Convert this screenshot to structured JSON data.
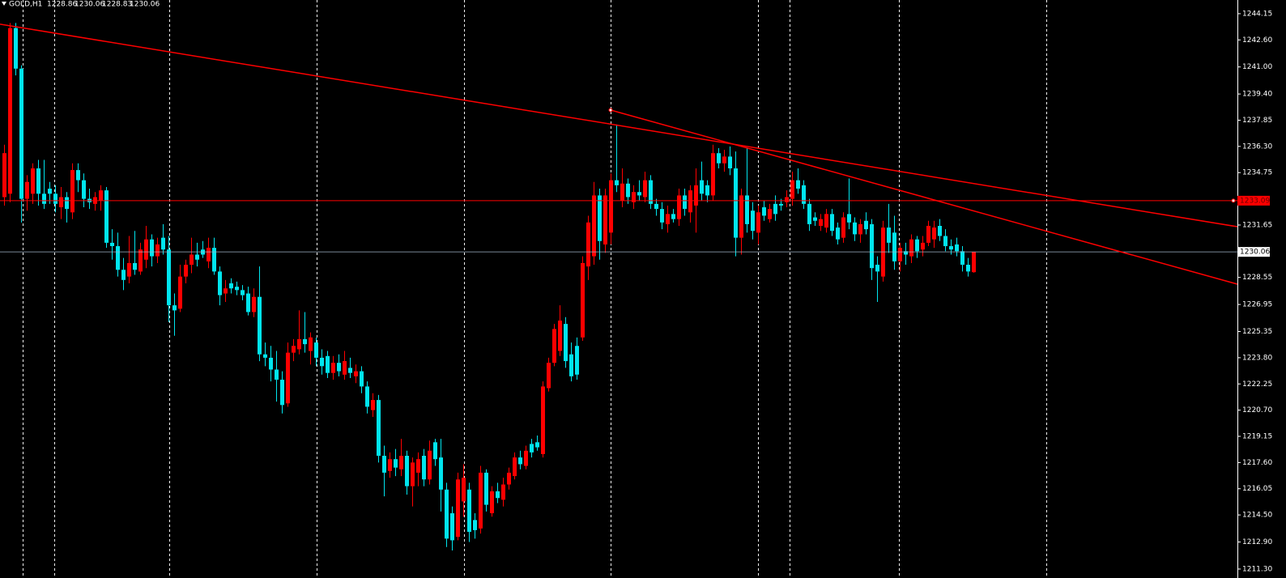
{
  "chart_data": {
    "type": "candlestick",
    "title": "GOLD,H1",
    "up_color": "#ff0000",
    "down_color": "#00e5ee",
    "ylim": [
      1210.77,
      1244.96
    ],
    "yticks": [
      {
        "value": 1244.15,
        "label": "1244.15"
      },
      {
        "value": 1242.6,
        "label": "1242.60"
      },
      {
        "value": 1241,
        "label": "1241.00"
      },
      {
        "value": 1239.4,
        "label": "1239.40"
      },
      {
        "value": 1237.85,
        "label": "1237.85"
      },
      {
        "value": 1236.3,
        "label": "1236.30"
      },
      {
        "value": 1234.75,
        "label": "1234.75"
      },
      {
        "value": 1231.65,
        "label": "1231.65"
      },
      {
        "value": 1228.55,
        "label": "1228.55"
      },
      {
        "value": 1226.95,
        "label": "1226.95"
      },
      {
        "value": 1225.35,
        "label": "1225.35"
      },
      {
        "value": 1223.8,
        "label": "1223.80"
      },
      {
        "value": 1222.25,
        "label": "1222.25"
      },
      {
        "value": 1220.7,
        "label": "1220.70"
      },
      {
        "value": 1219.15,
        "label": "1219.15"
      },
      {
        "value": 1217.6,
        "label": "1217.60"
      },
      {
        "value": 1216.05,
        "label": "1216.05"
      },
      {
        "value": 1214.5,
        "label": "1214.50"
      },
      {
        "value": 1212.9,
        "label": "1212.90"
      },
      {
        "value": 1211.3,
        "label": "1211.30"
      }
    ],
    "hline": {
      "value": 1233.09,
      "color": "#ff0000"
    },
    "price_line_color": "#9fb3c8",
    "trendlines": [
      {
        "color": "#ff0000",
        "values": [
          1243.53,
          1231.55
        ]
      },
      {
        "color": "#ff0000",
        "start": 107,
        "values": [
          1238.45,
          1228.15
        ]
      }
    ],
    "candles": [
      [
        1233.3,
        1236.4,
        1232.8,
        1235.9
      ],
      [
        1233.5,
        1243.6,
        1233.0,
        1243.3
      ],
      [
        1243.3,
        1243.6,
        1240.5,
        1240.9
      ],
      [
        1240.9,
        1241.1,
        1231.8,
        1233.2
      ],
      [
        1233.2,
        1234.6,
        1232.5,
        1234.2
      ],
      [
        1233.5,
        1235.3,
        1232.9,
        1235.0
      ],
      [
        1235.0,
        1235.5,
        1232.8,
        1233.5
      ],
      [
        1233.5,
        1235.5,
        1232.6,
        1232.9
      ],
      [
        1233.8,
        1234.2,
        1232.9,
        1233.5
      ],
      [
        1233.5,
        1234.0,
        1232.4,
        1232.9
      ],
      [
        1232.7,
        1233.9,
        1232.0,
        1233.3
      ],
      [
        1233.3,
        1233.6,
        1231.8,
        1232.6
      ],
      [
        1232.4,
        1235.3,
        1232.0,
        1234.9
      ],
      [
        1234.9,
        1235.3,
        1233.6,
        1234.3
      ],
      [
        1234.3,
        1234.7,
        1232.7,
        1233.2
      ],
      [
        1233.2,
        1233.8,
        1232.6,
        1233.0
      ],
      [
        1232.9,
        1233.6,
        1232.5,
        1233.3
      ],
      [
        1233.1,
        1234.0,
        1232.5,
        1233.7
      ],
      [
        1233.7,
        1233.9,
        1230.3,
        1230.6
      ],
      [
        1230.6,
        1231.4,
        1229.6,
        1230.4
      ],
      [
        1230.4,
        1231.2,
        1228.6,
        1229.0
      ],
      [
        1229.0,
        1229.7,
        1227.8,
        1228.4
      ],
      [
        1228.6,
        1231.0,
        1228.2,
        1229.4
      ],
      [
        1229.4,
        1231.3,
        1228.7,
        1229.0
      ],
      [
        1228.9,
        1230.6,
        1228.7,
        1230.2
      ],
      [
        1229.6,
        1231.6,
        1229.1,
        1230.8
      ],
      [
        1230.8,
        1231.1,
        1229.2,
        1229.8
      ],
      [
        1229.8,
        1230.9,
        1229.4,
        1230.5
      ],
      [
        1230.9,
        1231.7,
        1229.9,
        1230.2
      ],
      [
        1230.2,
        1231.0,
        1225.9,
        1226.9
      ],
      [
        1226.9,
        1227.6,
        1225.1,
        1226.6
      ],
      [
        1226.7,
        1229.3,
        1226.5,
        1228.6
      ],
      [
        1228.6,
        1229.6,
        1228.2,
        1229.3
      ],
      [
        1229.3,
        1230.9,
        1228.8,
        1229.9
      ],
      [
        1229.9,
        1230.6,
        1229.2,
        1229.6
      ],
      [
        1230.2,
        1230.7,
        1229.7,
        1229.9
      ],
      [
        1229.5,
        1230.9,
        1229.1,
        1230.3
      ],
      [
        1230.3,
        1230.9,
        1228.7,
        1228.9
      ],
      [
        1228.9,
        1229.2,
        1226.9,
        1227.5
      ],
      [
        1227.6,
        1228.4,
        1227.1,
        1227.9
      ],
      [
        1228.2,
        1228.5,
        1227.6,
        1227.9
      ],
      [
        1228.0,
        1228.3,
        1227.5,
        1227.8
      ],
      [
        1227.8,
        1228.1,
        1227.2,
        1227.5
      ],
      [
        1227.6,
        1228.0,
        1226.3,
        1226.5
      ],
      [
        1226.5,
        1227.9,
        1226.2,
        1227.4
      ],
      [
        1227.4,
        1229.2,
        1223.6,
        1224.0
      ],
      [
        1224.0,
        1224.7,
        1223.3,
        1223.8
      ],
      [
        1223.8,
        1224.5,
        1222.4,
        1223.1
      ],
      [
        1223.1,
        1224.2,
        1221.2,
        1222.5
      ],
      [
        1222.5,
        1223.0,
        1220.5,
        1221.0
      ],
      [
        1221.1,
        1224.7,
        1220.9,
        1224.1
      ],
      [
        1224.1,
        1224.9,
        1223.6,
        1224.5
      ],
      [
        1224.3,
        1226.6,
        1224.0,
        1224.9
      ],
      [
        1224.9,
        1226.5,
        1224.1,
        1224.6
      ],
      [
        1224.2,
        1225.3,
        1223.4,
        1225.0
      ],
      [
        1224.7,
        1225.0,
        1223.3,
        1223.8
      ],
      [
        1223.8,
        1224.3,
        1222.8,
        1223.3
      ],
      [
        1223.9,
        1224.2,
        1222.6,
        1222.9
      ],
      [
        1222.9,
        1223.9,
        1222.5,
        1223.5
      ],
      [
        1223.5,
        1224.0,
        1222.7,
        1223.0
      ],
      [
        1222.8,
        1224.2,
        1222.5,
        1223.6
      ],
      [
        1223.2,
        1223.8,
        1222.6,
        1222.9
      ],
      [
        1222.7,
        1223.4,
        1222.3,
        1223.0
      ],
      [
        1223.0,
        1223.3,
        1221.7,
        1222.1
      ],
      [
        1222.1,
        1222.4,
        1220.5,
        1220.9
      ],
      [
        1220.7,
        1221.7,
        1220.3,
        1221.3
      ],
      [
        1221.3,
        1221.6,
        1217.6,
        1218.0
      ],
      [
        1218.0,
        1218.6,
        1215.6,
        1217.0
      ],
      [
        1217.1,
        1218.2,
        1216.7,
        1217.8
      ],
      [
        1217.8,
        1218.4,
        1216.8,
        1217.3
      ],
      [
        1217.2,
        1219.0,
        1216.8,
        1218.0
      ],
      [
        1218.0,
        1218.3,
        1215.7,
        1216.2
      ],
      [
        1216.2,
        1217.9,
        1215.0,
        1217.6
      ],
      [
        1217.0,
        1218.2,
        1216.2,
        1217.8
      ],
      [
        1218.0,
        1218.4,
        1216.2,
        1216.6
      ],
      [
        1216.6,
        1218.9,
        1216.3,
        1218.3
      ],
      [
        1218.8,
        1219.0,
        1217.4,
        1217.8
      ],
      [
        1217.9,
        1219.0,
        1214.7,
        1216.0
      ],
      [
        1216.0,
        1216.4,
        1212.6,
        1213.1
      ],
      [
        1214.6,
        1215.0,
        1212.4,
        1213.0
      ],
      [
        1213.2,
        1217.0,
        1213.0,
        1216.6
      ],
      [
        1215.3,
        1217.5,
        1214.4,
        1216.7
      ],
      [
        1216.0,
        1216.4,
        1212.9,
        1213.5
      ],
      [
        1214.2,
        1214.6,
        1213.1,
        1213.6
      ],
      [
        1213.7,
        1217.4,
        1213.4,
        1217.0
      ],
      [
        1217.0,
        1217.2,
        1214.7,
        1215.1
      ],
      [
        1214.6,
        1216.2,
        1214.4,
        1215.9
      ],
      [
        1215.9,
        1216.4,
        1215.2,
        1215.5
      ],
      [
        1215.4,
        1216.7,
        1215.0,
        1216.3
      ],
      [
        1216.3,
        1217.3,
        1216.0,
        1217.0
      ],
      [
        1216.8,
        1218.2,
        1216.6,
        1217.9
      ],
      [
        1217.9,
        1218.3,
        1217.2,
        1217.5
      ],
      [
        1217.4,
        1218.6,
        1217.2,
        1218.3
      ],
      [
        1218.7,
        1219.0,
        1217.9,
        1218.2
      ],
      [
        1218.8,
        1219.2,
        1218.3,
        1218.5
      ],
      [
        1218.1,
        1222.4,
        1217.9,
        1222.1
      ],
      [
        1222.0,
        1223.8,
        1221.8,
        1223.5
      ],
      [
        1223.5,
        1225.8,
        1223.3,
        1225.5
      ],
      [
        1224.2,
        1226.9,
        1223.9,
        1226.0
      ],
      [
        1225.8,
        1226.2,
        1223.2,
        1223.6
      ],
      [
        1224.0,
        1224.7,
        1222.4,
        1222.7
      ],
      [
        1224.5,
        1225.0,
        1222.5,
        1222.8
      ],
      [
        1225.0,
        1229.8,
        1224.8,
        1229.4
      ],
      [
        1229.2,
        1232.2,
        1228.4,
        1231.8
      ],
      [
        1229.8,
        1234.2,
        1229.3,
        1233.4
      ],
      [
        1233.4,
        1233.8,
        1229.6,
        1230.7
      ],
      [
        1230.5,
        1233.8,
        1230.0,
        1233.4
      ],
      [
        1231.2,
        1234.7,
        1230.5,
        1234.3
      ],
      [
        1234.3,
        1237.6,
        1233.6,
        1234.0
      ],
      [
        1233.1,
        1235.0,
        1232.7,
        1234.1
      ],
      [
        1234.1,
        1234.4,
        1232.9,
        1233.3
      ],
      [
        1233.0,
        1234.0,
        1232.6,
        1233.6
      ],
      [
        1233.6,
        1234.3,
        1233.1,
        1233.4
      ],
      [
        1233.3,
        1234.8,
        1233.0,
        1234.3
      ],
      [
        1234.3,
        1234.6,
        1232.6,
        1232.9
      ],
      [
        1232.9,
        1233.2,
        1232.2,
        1232.6
      ],
      [
        1232.6,
        1233.0,
        1231.4,
        1231.8
      ],
      [
        1231.7,
        1232.8,
        1231.2,
        1232.3
      ],
      [
        1232.3,
        1232.6,
        1231.8,
        1232.0
      ],
      [
        1232.0,
        1233.8,
        1231.6,
        1233.4
      ],
      [
        1233.4,
        1233.8,
        1232.2,
        1232.6
      ],
      [
        1232.4,
        1234.0,
        1231.8,
        1233.7
      ],
      [
        1232.8,
        1235.0,
        1231.2,
        1234.0
      ],
      [
        1234.3,
        1235.4,
        1233.1,
        1233.5
      ],
      [
        1234.0,
        1234.3,
        1233.0,
        1233.4
      ],
      [
        1233.4,
        1236.4,
        1233.1,
        1235.9
      ],
      [
        1235.9,
        1236.2,
        1235.0,
        1235.3
      ],
      [
        1235.3,
        1236.1,
        1234.8,
        1235.7
      ],
      [
        1235.7,
        1236.3,
        1234.6,
        1235.0
      ],
      [
        1235.0,
        1236.0,
        1229.8,
        1230.9
      ],
      [
        1230.9,
        1233.8,
        1229.9,
        1233.4
      ],
      [
        1233.4,
        1236.2,
        1231.2,
        1231.7
      ],
      [
        1232.5,
        1233.0,
        1230.8,
        1231.3
      ],
      [
        1231.2,
        1232.8,
        1230.5,
        1232.4
      ],
      [
        1232.7,
        1233.1,
        1231.9,
        1232.2
      ],
      [
        1232.0,
        1232.9,
        1231.8,
        1232.6
      ],
      [
        1232.9,
        1233.4,
        1231.9,
        1232.3
      ],
      [
        1232.9,
        1233.2,
        1232.5,
        1232.8
      ],
      [
        1233.0,
        1233.7,
        1232.7,
        1233.3
      ],
      [
        1233.2,
        1234.8,
        1232.8,
        1234.3
      ],
      [
        1234.3,
        1235.0,
        1233.5,
        1233.8
      ],
      [
        1234.0,
        1234.3,
        1232.6,
        1232.9
      ],
      [
        1232.9,
        1233.2,
        1231.3,
        1231.7
      ],
      [
        1232.1,
        1232.4,
        1231.6,
        1231.9
      ],
      [
        1231.6,
        1232.3,
        1231.3,
        1232.0
      ],
      [
        1231.5,
        1232.6,
        1231.2,
        1232.3
      ],
      [
        1232.3,
        1232.6,
        1231.0,
        1231.3
      ],
      [
        1231.5,
        1231.8,
        1230.5,
        1230.8
      ],
      [
        1230.9,
        1232.4,
        1230.6,
        1232.1
      ],
      [
        1232.3,
        1234.4,
        1231.4,
        1231.8
      ],
      [
        1231.8,
        1232.1,
        1230.7,
        1231.1
      ],
      [
        1231.1,
        1232.0,
        1230.6,
        1231.7
      ],
      [
        1231.9,
        1232.4,
        1231.1,
        1231.4
      ],
      [
        1231.7,
        1232.0,
        1228.4,
        1229.1
      ],
      [
        1229.3,
        1229.8,
        1227.1,
        1228.9
      ],
      [
        1228.6,
        1231.9,
        1228.3,
        1231.5
      ],
      [
        1231.5,
        1232.9,
        1230.0,
        1230.6
      ],
      [
        1231.2,
        1232.2,
        1229.0,
        1229.5
      ],
      [
        1229.5,
        1230.6,
        1228.9,
        1230.3
      ],
      [
        1230.1,
        1230.6,
        1229.3,
        1229.9
      ],
      [
        1229.8,
        1231.1,
        1229.4,
        1230.8
      ],
      [
        1230.8,
        1231.0,
        1229.7,
        1230.1
      ],
      [
        1230.2,
        1231.0,
        1229.8,
        1230.6
      ],
      [
        1230.6,
        1231.9,
        1230.4,
        1231.6
      ],
      [
        1230.8,
        1231.9,
        1230.3,
        1231.5
      ],
      [
        1231.6,
        1232.0,
        1230.7,
        1231.0
      ],
      [
        1231.0,
        1231.4,
        1230.1,
        1230.4
      ],
      [
        1230.4,
        1230.8,
        1229.9,
        1230.2
      ],
      [
        1230.5,
        1230.9,
        1229.8,
        1230.1
      ],
      [
        1230.1,
        1230.4,
        1228.9,
        1229.3
      ],
      [
        1229.3,
        1229.7,
        1228.6,
        1228.9
      ],
      [
        1228.86,
        1230.06,
        1228.83,
        1230.06
      ]
    ]
  }
}
